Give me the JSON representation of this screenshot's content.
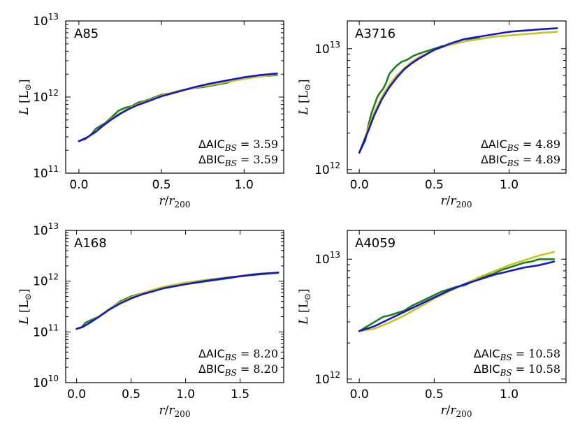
{
  "colors": {
    "data": "#1f7f1f",
    "yellow_model": "#c8c41e",
    "blue_model": "#1515d0"
  },
  "chart_data": [
    {
      "type": "line",
      "name": "A85",
      "title": "A85",
      "xlabel": "r/r200",
      "ylabel": "L [L⊙]",
      "xlim": [
        -0.08,
        1.24
      ],
      "ylog": [
        11,
        13
      ],
      "xticks": [
        0.0,
        0.5,
        1.0
      ],
      "xtick_labels": [
        "0.0",
        "0.5",
        "1.0"
      ],
      "yticks": [
        11,
        12,
        13
      ],
      "ytick_labels": [
        {
          "base": "10",
          "exp": "11"
        },
        {
          "base": "10",
          "exp": "12"
        },
        {
          "base": "10",
          "exp": "13"
        }
      ],
      "stats": [
        {
          "label": "ΔAIC",
          "sub": "BS",
          "text": " = 3.59"
        },
        {
          "label": "ΔBIC",
          "sub": "BS",
          "text": " = 3.59"
        }
      ],
      "series": [
        {
          "name": "data",
          "color": "#1f7f1f",
          "x": [
            0.0,
            0.04,
            0.08,
            0.1,
            0.13,
            0.16,
            0.2,
            0.24,
            0.28,
            0.32,
            0.36,
            0.4,
            0.45,
            0.5,
            0.55,
            0.6,
            0.65,
            0.7,
            0.75,
            0.8,
            0.85,
            0.9,
            0.95,
            1.0,
            1.05,
            1.1,
            1.15,
            1.2
          ],
          "y": [
            11.42,
            11.45,
            11.52,
            11.58,
            11.62,
            11.66,
            11.74,
            11.82,
            11.86,
            11.88,
            11.93,
            11.95,
            11.99,
            12.03,
            12.05,
            12.08,
            12.1,
            12.12,
            12.13,
            12.15,
            12.17,
            12.19,
            12.23,
            12.26,
            12.27,
            12.28,
            12.28,
            12.29
          ]
        },
        {
          "name": "yellow_model",
          "color": "#c8c41e",
          "x": [
            0.0,
            0.05,
            0.1,
            0.15,
            0.2,
            0.25,
            0.3,
            0.35,
            0.4,
            0.45,
            0.5,
            0.55,
            0.6,
            0.7,
            0.8,
            0.9,
            1.0,
            1.1,
            1.2
          ],
          "y": [
            11.42,
            11.47,
            11.54,
            11.63,
            11.72,
            11.79,
            11.85,
            11.9,
            11.94,
            11.98,
            12.02,
            12.05,
            12.08,
            12.12,
            12.16,
            12.2,
            12.24,
            12.27,
            12.3
          ]
        },
        {
          "name": "blue_model",
          "color": "#1515d0",
          "x": [
            0.0,
            0.05,
            0.1,
            0.15,
            0.2,
            0.25,
            0.3,
            0.35,
            0.4,
            0.45,
            0.5,
            0.55,
            0.6,
            0.7,
            0.8,
            0.9,
            1.0,
            1.1,
            1.2
          ],
          "y": [
            11.42,
            11.47,
            11.54,
            11.63,
            11.71,
            11.78,
            11.84,
            11.89,
            11.93,
            11.97,
            12.01,
            12.04,
            12.07,
            12.13,
            12.18,
            12.22,
            12.26,
            12.29,
            12.31
          ]
        }
      ]
    },
    {
      "type": "line",
      "name": "A3716",
      "title": "A3716",
      "xlabel": "r/r200",
      "ylabel": "L [L⊙]",
      "xlim": [
        -0.08,
        1.38
      ],
      "ylog": [
        11.97,
        13.23
      ],
      "xticks": [
        0.0,
        0.5,
        1.0
      ],
      "xtick_labels": [
        "0.0",
        "0.5",
        "1.0"
      ],
      "yticks": [
        12,
        13
      ],
      "ytick_labels": [
        {
          "base": "10",
          "exp": "12"
        },
        {
          "base": "10",
          "exp": "13"
        }
      ],
      "stats": [
        {
          "label": "ΔAIC",
          "sub": "BS",
          "text": " = 4.89"
        },
        {
          "label": "ΔBIC",
          "sub": "BS",
          "text": " = 4.89"
        }
      ],
      "series": [
        {
          "name": "data",
          "color": "#1f7f1f",
          "x": [
            0.0,
            0.02,
            0.04,
            0.06,
            0.08,
            0.1,
            0.12,
            0.14,
            0.16,
            0.18,
            0.2,
            0.22,
            0.25,
            0.28,
            0.32,
            0.36,
            0.4,
            0.45,
            0.5,
            0.55,
            0.6,
            0.65,
            0.7,
            0.75,
            0.8
          ],
          "y": [
            12.14,
            12.19,
            12.24,
            12.36,
            12.46,
            12.53,
            12.6,
            12.64,
            12.67,
            12.72,
            12.79,
            12.82,
            12.86,
            12.89,
            12.91,
            12.94,
            12.96,
            12.98,
            13.0,
            13.02,
            13.03,
            13.05,
            13.06,
            13.08,
            13.09
          ]
        },
        {
          "name": "yellow_model",
          "color": "#c8c41e",
          "x": [
            0.0,
            0.03,
            0.06,
            0.1,
            0.15,
            0.2,
            0.25,
            0.3,
            0.35,
            0.4,
            0.5,
            0.6,
            0.7,
            0.8,
            0.9,
            1.0,
            1.1,
            1.2,
            1.32
          ],
          "y": [
            12.14,
            12.24,
            12.34,
            12.47,
            12.6,
            12.7,
            12.78,
            12.84,
            12.89,
            12.93,
            12.99,
            13.03,
            13.06,
            13.08,
            13.1,
            13.11,
            13.12,
            13.13,
            13.14
          ]
        },
        {
          "name": "blue_model",
          "color": "#1515d0",
          "x": [
            0.0,
            0.03,
            0.06,
            0.1,
            0.15,
            0.2,
            0.25,
            0.3,
            0.35,
            0.4,
            0.5,
            0.6,
            0.7,
            0.8,
            0.9,
            1.0,
            1.1,
            1.2,
            1.32
          ],
          "y": [
            12.14,
            12.23,
            12.32,
            12.45,
            12.58,
            12.68,
            12.76,
            12.83,
            12.88,
            12.92,
            12.99,
            13.04,
            13.08,
            13.1,
            13.12,
            13.14,
            13.15,
            13.16,
            13.17
          ]
        }
      ]
    },
    {
      "type": "line",
      "name": "A168",
      "title": "A168",
      "xlabel": "r/r200",
      "ylabel": "L [L⊙]",
      "xlim": [
        -0.1,
        1.9
      ],
      "ylog": [
        10,
        13
      ],
      "xticks": [
        0.0,
        0.5,
        1.0,
        1.5
      ],
      "xtick_labels": [
        "0.0",
        "0.5",
        "1.0",
        "1.5"
      ],
      "yticks": [
        10,
        11,
        12,
        13
      ],
      "ytick_labels": [
        {
          "base": "10",
          "exp": "10"
        },
        {
          "base": "10",
          "exp": "11"
        },
        {
          "base": "10",
          "exp": "12"
        },
        {
          "base": "10",
          "exp": "13"
        }
      ],
      "stats": [
        {
          "label": "ΔAIC",
          "sub": "BS",
          "text": " = 8.20"
        },
        {
          "label": "ΔBIC",
          "sub": "BS",
          "text": " = 8.20"
        }
      ],
      "series": [
        {
          "name": "data",
          "color": "#1f7f1f",
          "x": [
            0.0,
            0.05,
            0.08,
            0.1,
            0.15,
            0.2,
            0.25,
            0.3,
            0.35,
            0.4,
            0.45,
            0.5,
            0.6,
            0.7,
            0.8,
            0.9,
            1.0,
            1.1,
            1.2,
            1.3,
            1.4,
            1.5,
            1.6,
            1.7,
            1.8,
            1.85
          ],
          "y": [
            11.06,
            11.1,
            11.18,
            11.2,
            11.25,
            11.3,
            11.37,
            11.45,
            11.52,
            11.6,
            11.65,
            11.7,
            11.76,
            11.82,
            11.86,
            11.9,
            11.94,
            11.97,
            12.0,
            12.03,
            12.06,
            12.1,
            12.13,
            12.15,
            12.16,
            12.16
          ]
        },
        {
          "name": "yellow_model",
          "color": "#c8c41e",
          "x": [
            0.0,
            0.05,
            0.1,
            0.15,
            0.2,
            0.3,
            0.4,
            0.5,
            0.6,
            0.7,
            0.8,
            0.9,
            1.0,
            1.2,
            1.4,
            1.6,
            1.85
          ],
          "y": [
            11.06,
            11.09,
            11.15,
            11.22,
            11.3,
            11.45,
            11.58,
            11.68,
            11.76,
            11.83,
            11.89,
            11.93,
            11.97,
            12.03,
            12.08,
            12.12,
            12.16
          ]
        },
        {
          "name": "blue_model",
          "color": "#1515d0",
          "x": [
            0.0,
            0.05,
            0.1,
            0.15,
            0.2,
            0.3,
            0.4,
            0.5,
            0.6,
            0.7,
            0.8,
            0.9,
            1.0,
            1.2,
            1.4,
            1.6,
            1.85
          ],
          "y": [
            11.06,
            11.09,
            11.15,
            11.22,
            11.29,
            11.44,
            11.56,
            11.66,
            11.74,
            11.8,
            11.86,
            11.9,
            11.94,
            12.01,
            12.07,
            12.12,
            12.17
          ]
        }
      ]
    },
    {
      "type": "line",
      "name": "A4059",
      "title": "A4059",
      "xlabel": "r/r200",
      "ylabel": "L [L⊙]",
      "xlim": [
        -0.08,
        1.38
      ],
      "ylog": [
        11.97,
        13.24
      ],
      "xticks": [
        0.0,
        0.5,
        1.0
      ],
      "xtick_labels": [
        "0.0",
        "0.5",
        "1.0"
      ],
      "yticks": [
        12,
        13
      ],
      "ytick_labels": [
        {
          "base": "10",
          "exp": "12"
        },
        {
          "base": "10",
          "exp": "13"
        }
      ],
      "stats": [
        {
          "label": "ΔAIC",
          "sub": "BS",
          "text": " = 10.58"
        },
        {
          "label": "ΔBIC",
          "sub": "BS",
          "text": " = 10.58"
        }
      ],
      "series": [
        {
          "name": "data",
          "color": "#1f7f1f",
          "x": [
            0.0,
            0.04,
            0.08,
            0.12,
            0.16,
            0.2,
            0.25,
            0.3,
            0.35,
            0.4,
            0.45,
            0.5,
            0.55,
            0.6,
            0.65,
            0.7,
            0.75,
            0.8,
            0.85,
            0.9,
            0.95,
            1.0,
            1.05,
            1.1,
            1.15,
            1.2,
            1.25,
            1.3
          ],
          "y": [
            12.4,
            12.43,
            12.46,
            12.49,
            12.52,
            12.53,
            12.55,
            12.57,
            12.61,
            12.64,
            12.67,
            12.7,
            12.73,
            12.75,
            12.77,
            12.78,
            12.81,
            12.84,
            12.86,
            12.88,
            12.91,
            12.93,
            12.95,
            12.97,
            12.98,
            13.0,
            13.0,
            13.0
          ]
        },
        {
          "name": "yellow_model",
          "color": "#c8c41e",
          "x": [
            0.0,
            0.1,
            0.2,
            0.3,
            0.4,
            0.5,
            0.6,
            0.7,
            0.8,
            0.9,
            1.0,
            1.1,
            1.2,
            1.3
          ],
          "y": [
            12.4,
            12.42,
            12.47,
            12.53,
            12.6,
            12.67,
            12.73,
            12.79,
            12.85,
            12.9,
            12.95,
            12.99,
            13.03,
            13.06
          ]
        },
        {
          "name": "blue_model",
          "color": "#1515d0",
          "x": [
            0.0,
            0.1,
            0.2,
            0.3,
            0.4,
            0.5,
            0.6,
            0.7,
            0.8,
            0.9,
            1.0,
            1.1,
            1.2,
            1.3
          ],
          "y": [
            12.4,
            12.44,
            12.5,
            12.56,
            12.62,
            12.68,
            12.74,
            12.79,
            12.83,
            12.87,
            12.9,
            12.93,
            12.95,
            12.98
          ]
        }
      ]
    }
  ]
}
